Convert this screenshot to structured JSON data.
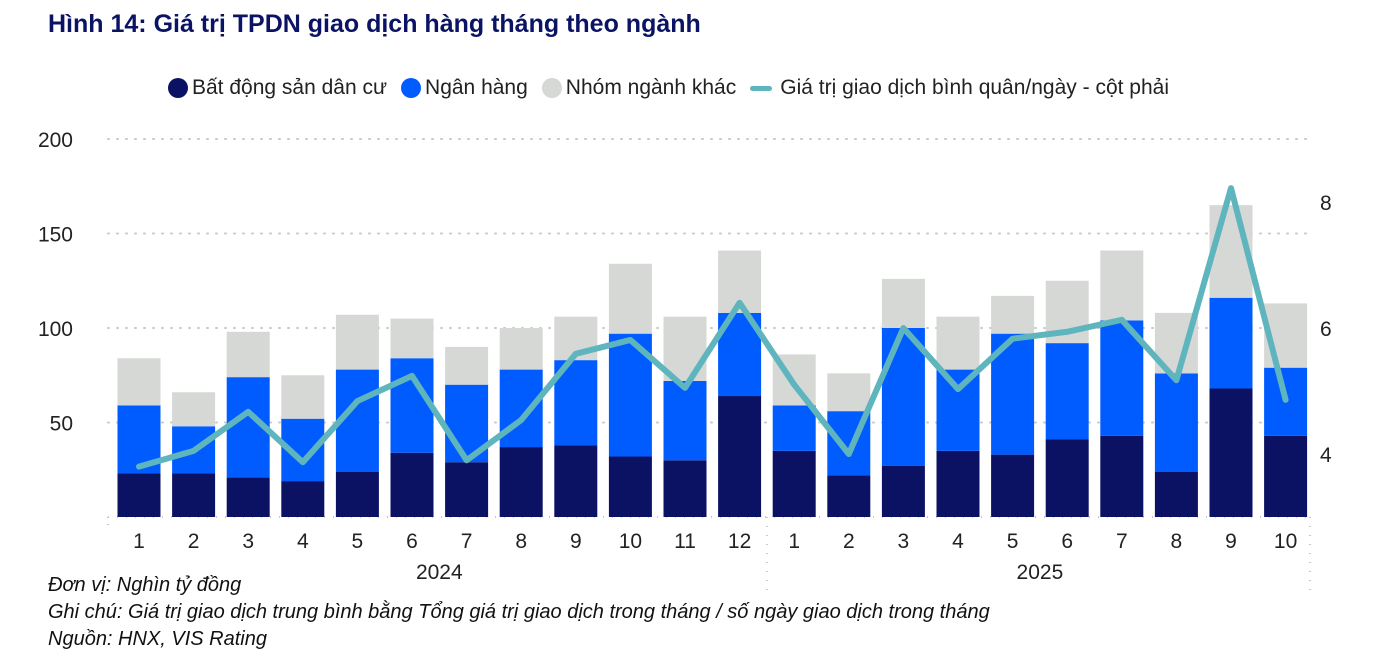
{
  "title": "Hình 14: Giá trị TPDN giao dịch hàng tháng theo ngành",
  "notes": {
    "unit": "Đơn vị: Nghìn tỷ đồng",
    "note": "Ghi chú: Giá trị giao dịch trung bình bằng Tổng giá trị giao dịch trong tháng / số ngày giao dịch trong tháng",
    "source": "Nguồn: HNX, VIS Rating"
  },
  "colors": {
    "real_estate": "#0b1263",
    "banks": "#005cff",
    "others": "#d6d8d5",
    "line": "#5fb5bd"
  },
  "chart_data": {
    "type": "bar",
    "stacked": true,
    "categories": [
      "1",
      "2",
      "3",
      "4",
      "5",
      "6",
      "7",
      "8",
      "9",
      "10",
      "11",
      "12",
      "1",
      "2",
      "3",
      "4",
      "5",
      "6",
      "7",
      "8",
      "9",
      "10"
    ],
    "groups": [
      {
        "label": "2024",
        "count": 12
      },
      {
        "label": "2025",
        "count": 10
      }
    ],
    "series": [
      {
        "name": "Bất động sản dân cư",
        "values": [
          23,
          23,
          21,
          19,
          24,
          34,
          29,
          37,
          38,
          32,
          30,
          64,
          35,
          22,
          27,
          35,
          33,
          41,
          43,
          24,
          68,
          43
        ]
      },
      {
        "name": "Ngân hàng",
        "values": [
          36,
          25,
          53,
          33,
          54,
          50,
          41,
          41,
          45,
          65,
          42,
          44,
          24,
          34,
          73,
          43,
          64,
          51,
          61,
          52,
          48,
          36
        ]
      },
      {
        "name": "Nhóm ngành khác",
        "values": [
          25,
          18,
          24,
          23,
          29,
          21,
          20,
          22,
          23,
          37,
          34,
          33,
          27,
          20,
          26,
          28,
          20,
          33,
          37,
          32,
          49,
          34
        ]
      }
    ],
    "line": {
      "name": "Giá trị giao dịch bình quân/ngày - cột phải",
      "axis": "right",
      "values": [
        3.8,
        4.05,
        4.67,
        3.87,
        4.84,
        5.24,
        3.9,
        4.54,
        5.59,
        5.81,
        5.05,
        6.4,
        5.1,
        4.0,
        6.0,
        5.03,
        5.83,
        5.94,
        6.13,
        5.17,
        8.22,
        4.86
      ]
    },
    "y_left": {
      "range": [
        0,
        200
      ],
      "ticks": [
        50,
        100,
        150,
        200
      ]
    },
    "y_right": {
      "range": [
        3,
        9
      ],
      "ticks": [
        4,
        6,
        8
      ]
    },
    "grid": "horizontal dotted",
    "legend": "top"
  }
}
